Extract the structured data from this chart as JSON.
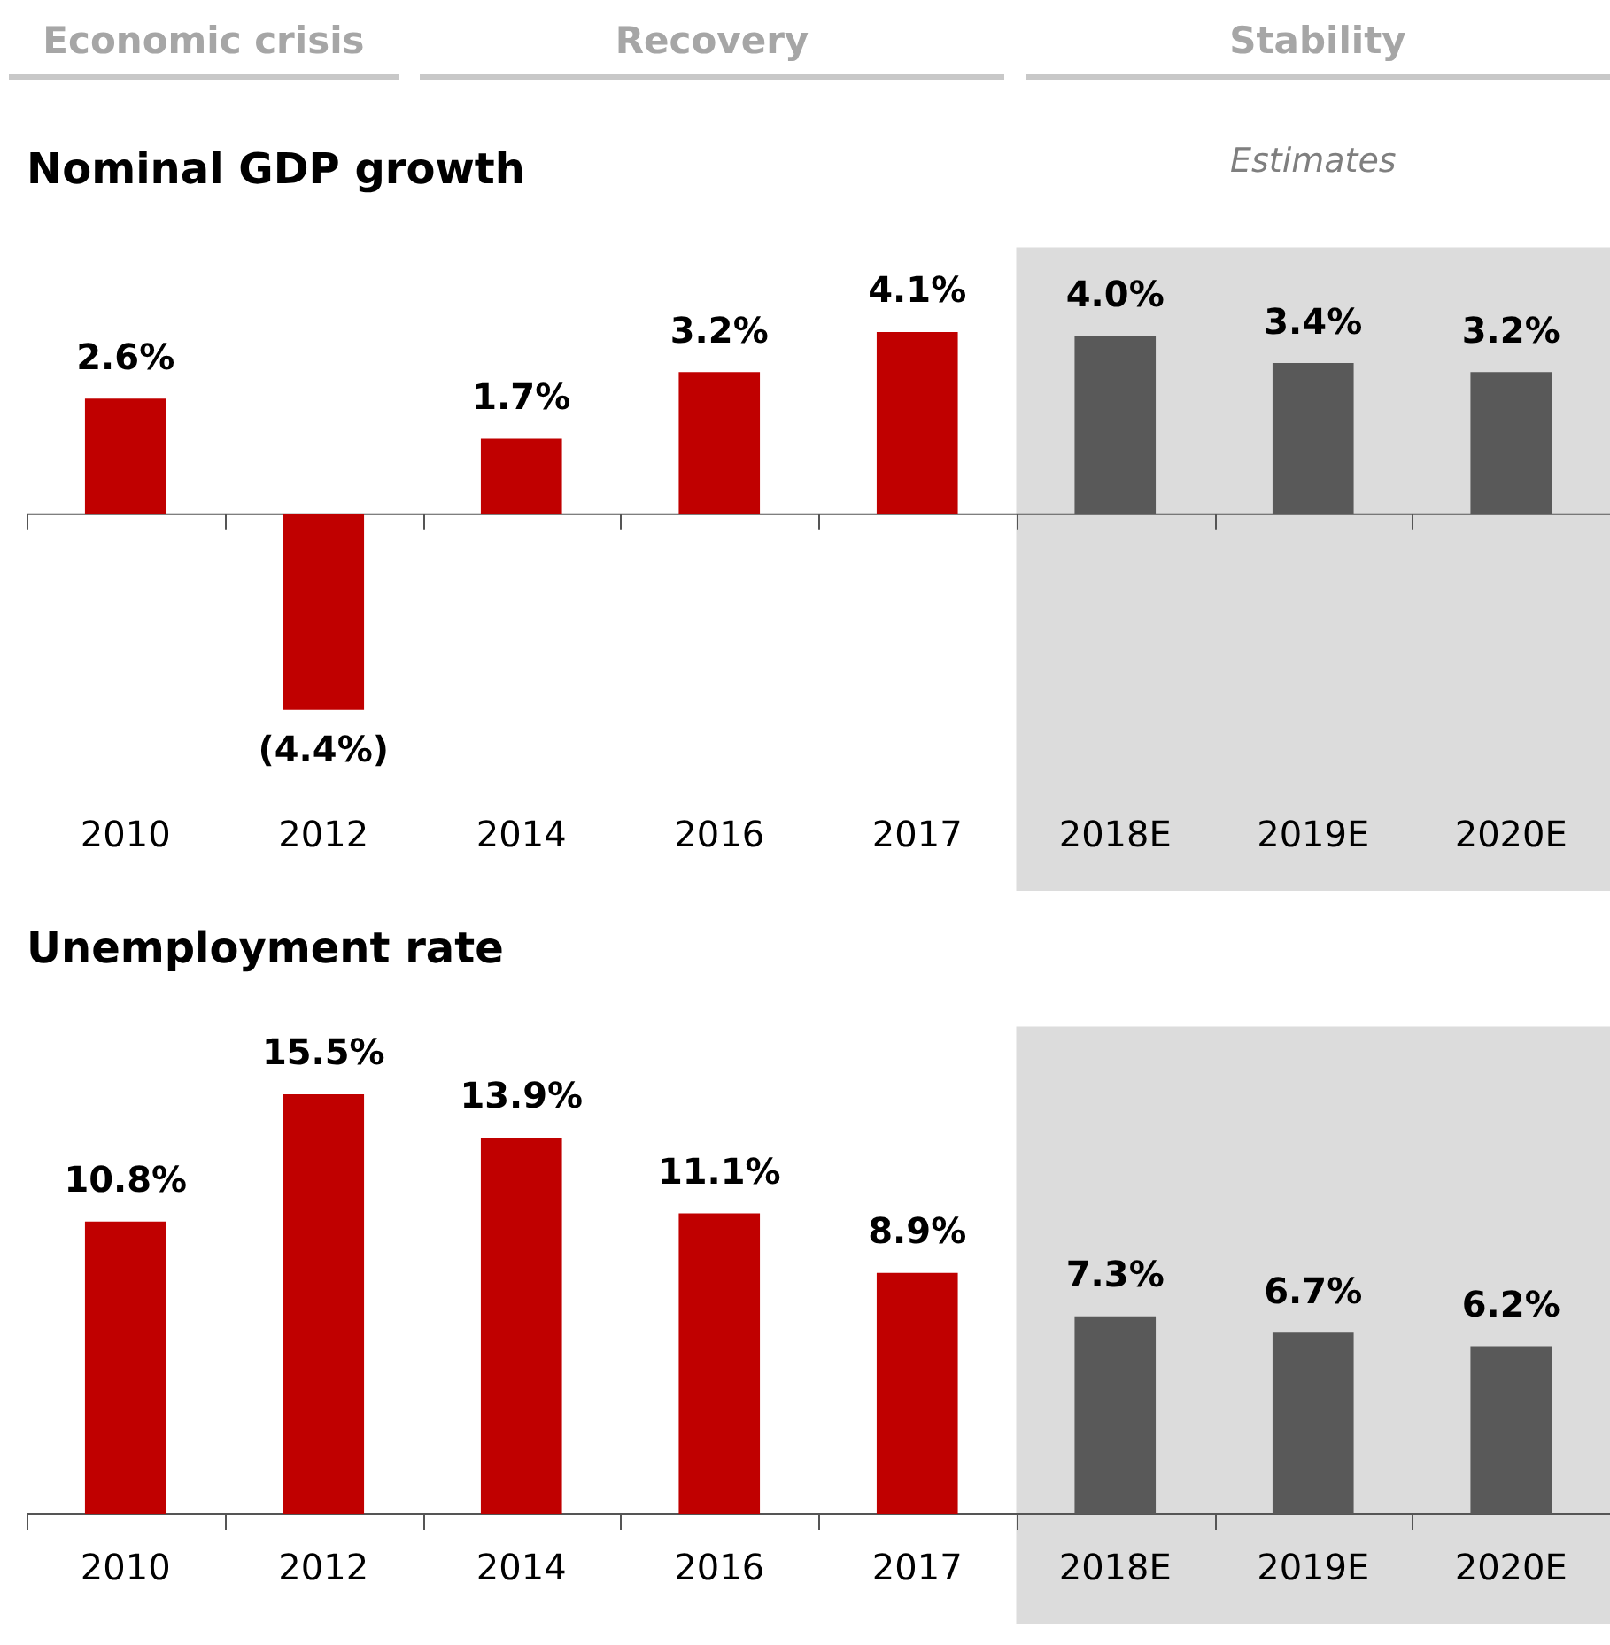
{
  "chart_data": [
    {
      "type": "bar",
      "title": "Nominal GDP growth",
      "annotations": [
        "Economic crisis",
        "Recovery",
        "Stability"
      ],
      "categories": [
        "2010",
        "2012",
        "2014",
        "2016",
        "2017",
        "2018E",
        "2019E",
        "2020E"
      ],
      "values": [
        2.6,
        -4.4,
        1.7,
        3.2,
        4.1,
        4.0,
        3.4,
        3.2
      ],
      "colors": [
        "#c00000",
        "#c00000",
        "#c00000",
        "#c00000",
        "#c00000",
        "#595959",
        "#595959",
        "#595959"
      ],
      "value_labels": [
        "2.6%",
        "(4.4%)",
        "1.7%",
        "3.2%",
        "4.1%",
        "4.0%",
        "3.4%",
        "3.2%"
      ],
      "bands": [
        {
          "axis": "x",
          "from": "2018E",
          "to": "2020E",
          "label": "Estimates",
          "color": "#dcdcdc"
        }
      ],
      "tick_labels": "x",
      "legend": false
    },
    {
      "type": "bar",
      "title": "Unemployment rate",
      "categories": [
        "2010",
        "2012",
        "2014",
        "2016",
        "2017",
        "2018E",
        "2019E",
        "2020E"
      ],
      "values": [
        10.8,
        15.5,
        13.9,
        11.1,
        8.9,
        7.3,
        6.7,
        6.2
      ],
      "colors": [
        "#c00000",
        "#c00000",
        "#c00000",
        "#c00000",
        "#c00000",
        "#595959",
        "#595959",
        "#595959"
      ],
      "value_labels": [
        "10.8%",
        "15.5%",
        "13.9%",
        "11.1%",
        "8.9%",
        "7.3%",
        "6.7%",
        "6.2%"
      ],
      "bands": [
        {
          "axis": "x",
          "from": "2018E",
          "to": "2020E",
          "color": "#dcdcdc"
        }
      ],
      "tick_labels": "x",
      "legend": false
    }
  ]
}
